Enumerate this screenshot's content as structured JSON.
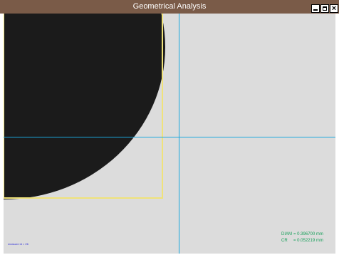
{
  "window": {
    "title": "Geometrical Analysis",
    "buttons": {
      "minimize_icon": "minimize-icon",
      "maximize_icon": "maximize-icon",
      "close_icon": "close-icon"
    }
  },
  "viewport": {
    "measure_id": "measure id = 26",
    "measurements": [
      {
        "label": "DIAM",
        "value": "= 0.396700 mm"
      },
      {
        "label": "CR",
        "value": "= 0.052219 mm"
      }
    ]
  },
  "colors": {
    "titlebar": "#7a5b48",
    "viewport_bg": "#dcdcdc",
    "sample": "#1b1b1b",
    "roi": "#efe27a",
    "crosshair": "#1aa7de",
    "readout_text": "#17a05a",
    "measure_id_text": "#2a2ad8"
  }
}
